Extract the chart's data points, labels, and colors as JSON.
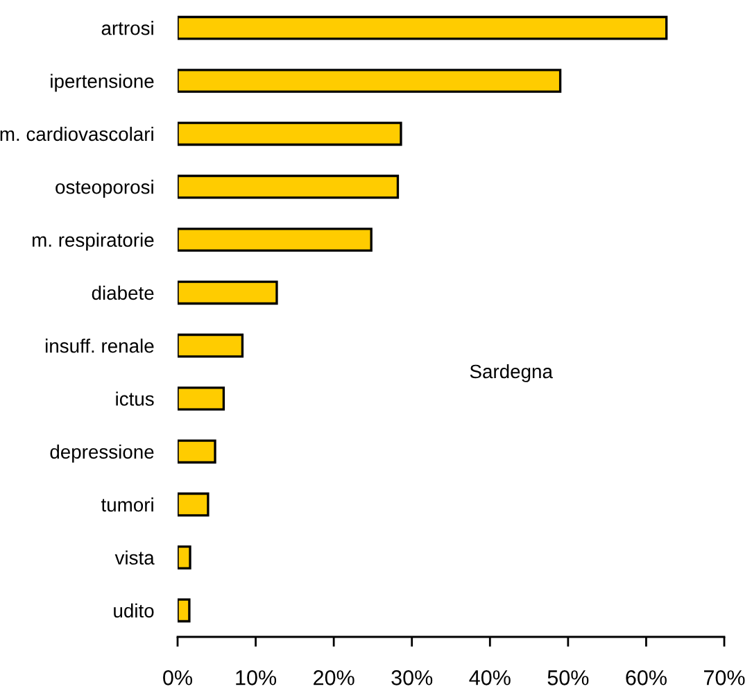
{
  "chart_data": {
    "type": "bar",
    "orientation": "horizontal",
    "categories": [
      "artrosi",
      "ipertensione",
      "m. cardiovascolari",
      "osteoporosi",
      "m. respiratorie",
      "diabete",
      "insuff. renale",
      "ictus",
      "depressione",
      "tumori",
      "vista",
      "udito"
    ],
    "values": [
      62.6,
      49.0,
      28.6,
      28.2,
      24.8,
      12.7,
      8.3,
      5.9,
      4.8,
      3.9,
      1.6,
      1.5
    ],
    "color": "#ffcc00",
    "xlim": [
      0,
      70
    ],
    "xticks": [
      {
        "value": 0,
        "label": "0%"
      },
      {
        "value": 10,
        "label": "10%"
      },
      {
        "value": 20,
        "label": "20%"
      },
      {
        "value": 30,
        "label": "30%"
      },
      {
        "value": 40,
        "label": "40%"
      },
      {
        "value": 50,
        "label": "50%"
      },
      {
        "value": 60,
        "label": "60%"
      },
      {
        "value": 70,
        "label": "70%"
      }
    ],
    "annotations": [
      "Sardegna"
    ],
    "grid": false,
    "legend": false
  }
}
